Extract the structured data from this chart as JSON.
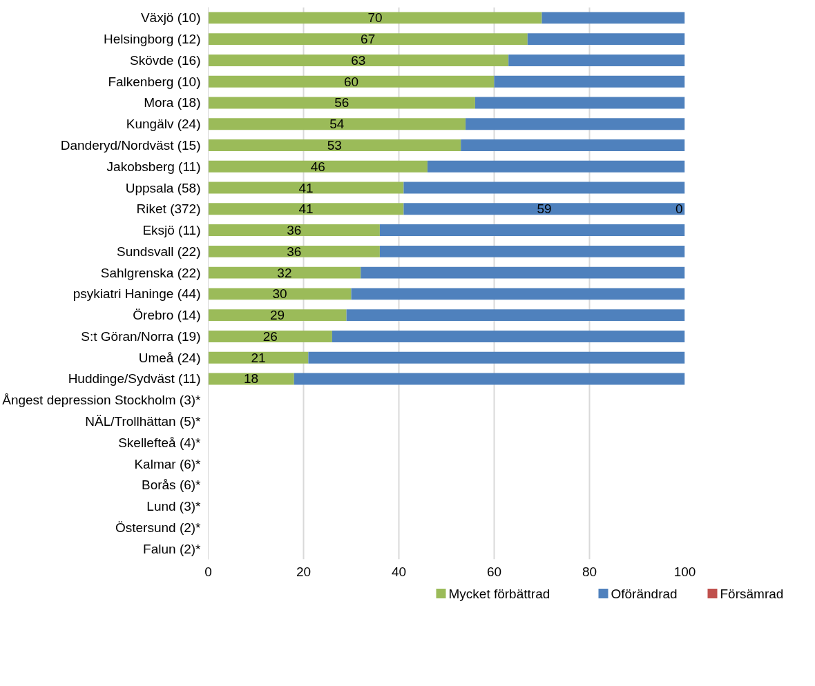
{
  "chart_data": {
    "type": "bar",
    "orientation": "horizontal",
    "stacked": true,
    "categories": [
      "Växjö (10)",
      "Helsingborg (12)",
      "Skövde (16)",
      "Falkenberg (10)",
      "Mora (18)",
      "Kungälv (24)",
      "Danderyd/Nordväst (15)",
      "Jakobsberg (11)",
      "Uppsala (58)",
      "Riket (372)",
      "Eksjö (11)",
      "Sundsvall (22)",
      "Sahlgrenska (22)",
      "psykiatri Haninge (44)",
      "Örebro (14)",
      "S:t Göran/Norra (19)",
      "Umeå (24)",
      "Huddinge/Sydväst (11)",
      "Ångest depression Stockholm (3)*",
      "NÄL/Trollhättan (5)*",
      "Skellefteå (4)*",
      "Kalmar (6)*",
      "Borås (6)*",
      "Lund (3)*",
      "Östersund (2)*",
      "Falun (2)*"
    ],
    "series": [
      {
        "name": "Mycket förbättrad",
        "color": "#9bbb59",
        "values": [
          70,
          67,
          63,
          60,
          56,
          54,
          53,
          46,
          41,
          41,
          36,
          36,
          32,
          30,
          29,
          26,
          21,
          18,
          null,
          null,
          null,
          null,
          null,
          null,
          null,
          null
        ],
        "value_labels": [
          "70",
          "67",
          "63",
          "60",
          "56",
          "54",
          "53",
          "46",
          "41",
          "41",
          "36",
          "36",
          "32",
          "30",
          "29",
          "26",
          "21",
          "18",
          null,
          null,
          null,
          null,
          null,
          null,
          null,
          null
        ]
      },
      {
        "name": "Oförändrad",
        "color": "#4f81bd",
        "values": [
          30,
          33,
          37,
          40,
          44,
          46,
          47,
          54,
          59,
          59,
          64,
          64,
          68,
          70,
          71,
          74,
          79,
          82,
          null,
          null,
          null,
          null,
          null,
          null,
          null,
          null
        ],
        "value_labels": [
          null,
          null,
          null,
          null,
          null,
          null,
          null,
          null,
          null,
          "59",
          null,
          null,
          null,
          null,
          null,
          null,
          null,
          null,
          null,
          null,
          null,
          null,
          null,
          null,
          null,
          null
        ]
      },
      {
        "name": "Försämrad",
        "color": "#c0504d",
        "values": [
          0,
          0,
          0,
          0,
          0,
          0,
          0,
          0,
          0,
          0,
          0,
          0,
          0,
          0,
          0,
          0,
          0,
          0,
          null,
          null,
          null,
          null,
          null,
          null,
          null,
          null
        ],
        "value_labels": [
          null,
          null,
          null,
          null,
          null,
          null,
          null,
          null,
          null,
          "0",
          null,
          null,
          null,
          null,
          null,
          null,
          null,
          null,
          null,
          null,
          null,
          null,
          null,
          null,
          null,
          null
        ]
      }
    ],
    "xlim": [
      0,
      100
    ],
    "xticks": [
      0,
      20,
      40,
      60,
      80,
      100
    ],
    "grid": "x",
    "legend": "bottom"
  }
}
